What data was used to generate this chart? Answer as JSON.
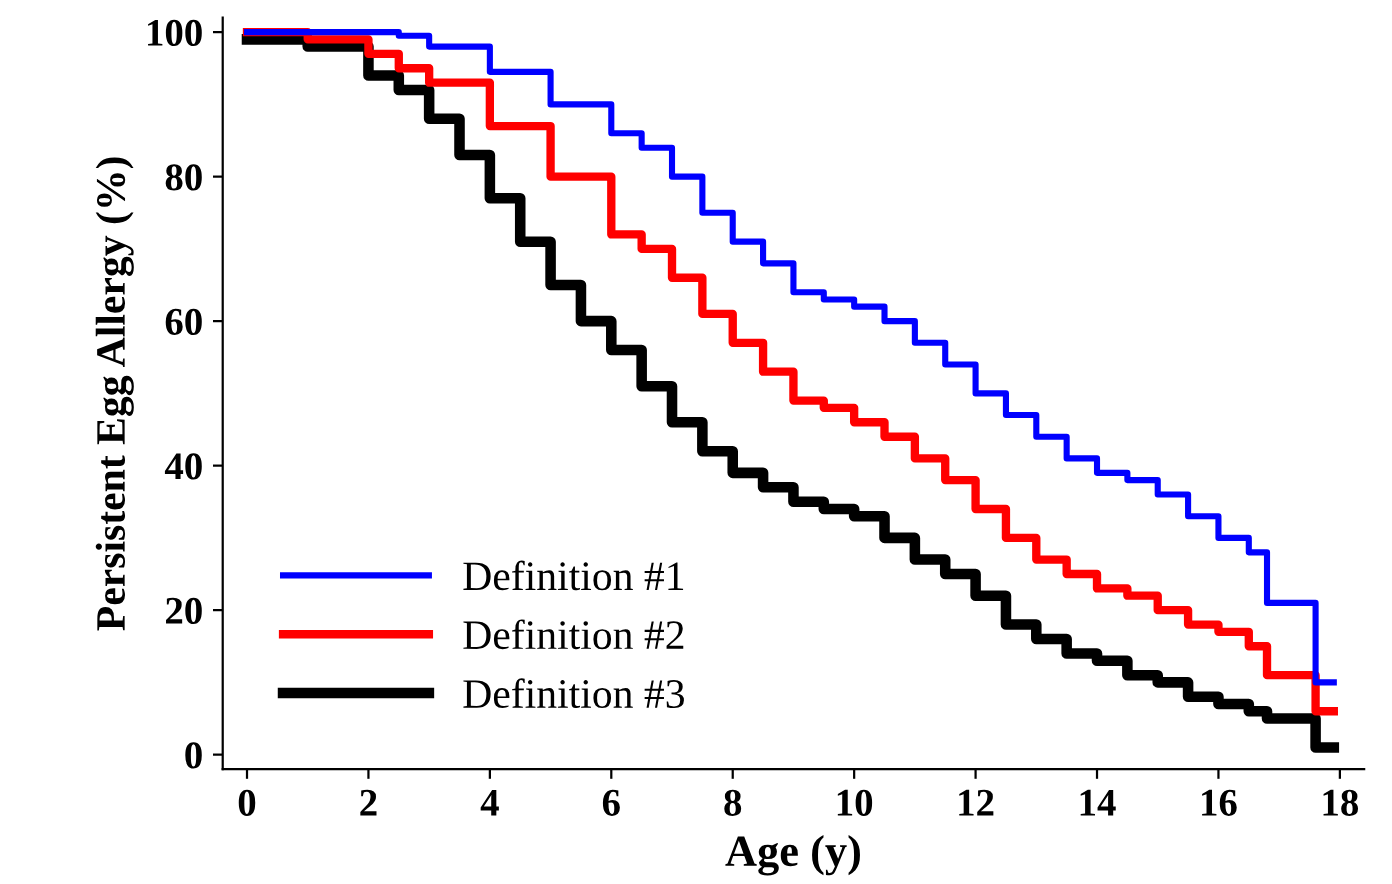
{
  "chart_data": {
    "type": "step",
    "xlabel": "Age (y)",
    "ylabel": "Persistent Egg Allergy (%)",
    "xlim": [
      -0.4,
      18.4
    ],
    "ylim": [
      -2,
      102
    ],
    "xticks": [
      0,
      2,
      4,
      6,
      8,
      10,
      12,
      14,
      16,
      18
    ],
    "yticks": [
      0,
      20,
      40,
      60,
      80,
      100
    ],
    "legend": "bottom left",
    "grid": false,
    "series": [
      {
        "name": "Definition #1",
        "color": "#0000ff",
        "x": [
          0,
          1,
          2,
          2.5,
          3,
          4,
          5,
          6,
          6.5,
          7,
          7.5,
          8,
          8.5,
          9,
          9.5,
          10,
          10.5,
          11,
          11.5,
          12,
          12.5,
          13,
          13.5,
          14,
          14.5,
          15,
          15.5,
          16,
          16.5,
          16.8,
          17.6,
          17.9
        ],
        "values": [
          100,
          100,
          100,
          99.5,
          98,
          94.5,
          90,
          86,
          84,
          80,
          75,
          71,
          68,
          64,
          63,
          62,
          60,
          57,
          54,
          50,
          47,
          44,
          41,
          39,
          38,
          36,
          33,
          30,
          28,
          21,
          10,
          10
        ]
      },
      {
        "name": "Definition #2",
        "color": "#ff0000",
        "x": [
          0,
          1,
          2,
          2.5,
          3,
          4,
          5,
          6,
          6.5,
          7,
          7.5,
          8,
          8.5,
          9,
          9.5,
          10,
          10.5,
          11,
          11.5,
          12,
          12.5,
          13,
          13.5,
          14,
          14.5,
          15,
          15.5,
          16,
          16.5,
          16.8,
          17.6,
          17.9
        ],
        "values": [
          100,
          99,
          97,
          95,
          93,
          87,
          80,
          72,
          70,
          66,
          61,
          57,
          53,
          49,
          48,
          46,
          44,
          41,
          38,
          34,
          30,
          27,
          25,
          23,
          22,
          20,
          18,
          17,
          15,
          11,
          6,
          6
        ]
      },
      {
        "name": "Definition #3",
        "color": "#000000",
        "x": [
          0,
          1,
          2,
          2.5,
          3,
          3.5,
          4,
          4.5,
          5,
          5.5,
          6,
          6.5,
          7,
          7.5,
          8,
          8.5,
          9,
          9.5,
          10,
          10.5,
          11,
          11.5,
          12,
          12.5,
          13,
          13.5,
          14,
          14.5,
          15,
          15.5,
          16,
          16.5,
          16.8,
          17.6,
          17.9
        ],
        "values": [
          99,
          98,
          94,
          92,
          88,
          83,
          77,
          71,
          65,
          60,
          56,
          51,
          46,
          42,
          39,
          37,
          35,
          34,
          33,
          30,
          27,
          25,
          22,
          18,
          16,
          14,
          13,
          11,
          10,
          8,
          7,
          6,
          5,
          1,
          1
        ]
      }
    ]
  }
}
